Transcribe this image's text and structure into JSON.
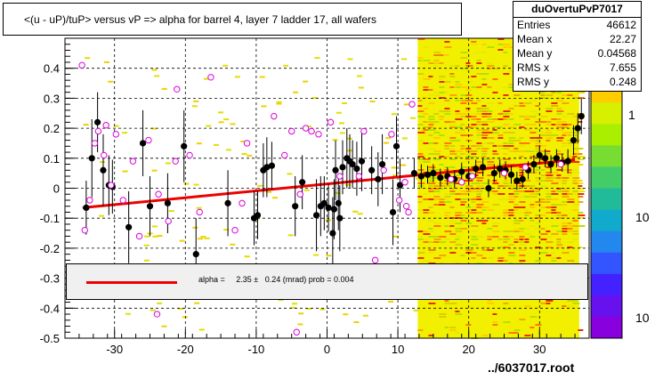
{
  "chart_data": {
    "type": "scatter",
    "title": "<(u - uP)/tuP> versus  vP => alpha for barrel 4, layer 7 ladder 17, all wafers",
    "xlabel": "",
    "ylabel": "",
    "xlim": [
      -37,
      37
    ],
    "ylim": [
      -0.5,
      0.5
    ],
    "x_ticks": [
      -30,
      -20,
      -10,
      0,
      10,
      20,
      30
    ],
    "y_ticks": [
      -0.5,
      -0.4,
      -0.3,
      -0.2,
      -0.1,
      0,
      0.1,
      0.2,
      0.3,
      0.4
    ],
    "grid": true,
    "stats_box": {
      "name": "duOvertuPvP7017",
      "rows": [
        {
          "label": "Entries",
          "value": "46612"
        },
        {
          "label": "Mean x",
          "value": "22.27"
        },
        {
          "label": "Mean y",
          "value": "0.04568"
        },
        {
          "label": "RMS x",
          "value": "7.655"
        },
        {
          "label": "RMS y",
          "value": "0.248"
        }
      ]
    },
    "fit_legend": "alpha =     2.35 ±   0.24 (mrad) prob = 0.004",
    "footer": "../6037017.root",
    "colorbar_labels": [
      "1",
      "10",
      "10"
    ],
    "fit_line": {
      "x": [
        -34.5,
        35
      ],
      "y": [
        -0.065,
        0.095
      ],
      "color": "#ee0000"
    },
    "series": [
      {
        "marker": "filled-circle",
        "color": "#000000",
        "points": [
          {
            "x": -34.0,
            "y": -0.065,
            "err": 0.09
          },
          {
            "x": -33.2,
            "y": 0.1,
            "err": 0.13
          },
          {
            "x": -32.4,
            "y": 0.22,
            "err": 0.1
          },
          {
            "x": -31.6,
            "y": 0.06,
            "err": 0.12
          },
          {
            "x": -30.8,
            "y": 0.01,
            "err": 0.1
          },
          {
            "x": -30.3,
            "y": 0.005,
            "err": 0.09
          },
          {
            "x": -28.0,
            "y": -0.13,
            "err": 0.12
          },
          {
            "x": -26.0,
            "y": 0.15,
            "err": 0.11
          },
          {
            "x": -25.0,
            "y": -0.06,
            "err": 0.1
          },
          {
            "x": -22.5,
            "y": -0.05,
            "err": 0.1
          },
          {
            "x": -20.2,
            "y": 0.14,
            "err": 0.12
          },
          {
            "x": -18.5,
            "y": -0.22,
            "err": 0.12
          },
          {
            "x": -14.0,
            "y": -0.05,
            "err": 0.11
          },
          {
            "x": -10.3,
            "y": -0.1,
            "err": 0.09
          },
          {
            "x": -9.8,
            "y": -0.09,
            "err": 0.08
          },
          {
            "x": -9.0,
            "y": 0.06,
            "err": 0.09
          },
          {
            "x": -8.5,
            "y": 0.07,
            "err": 0.1
          },
          {
            "x": -7.8,
            "y": 0.075,
            "err": 0.08
          },
          {
            "x": -4.5,
            "y": -0.06,
            "err": 0.1
          },
          {
            "x": -3.5,
            "y": 0.02,
            "err": 0.09
          },
          {
            "x": -1.5,
            "y": -0.09,
            "err": 0.12
          },
          {
            "x": -0.9,
            "y": -0.06,
            "err": 0.1
          },
          {
            "x": -0.4,
            "y": -0.05,
            "err": 0.09
          },
          {
            "x": 0.2,
            "y": -0.065,
            "err": 0.08
          },
          {
            "x": 1.0,
            "y": -0.07,
            "err": 0.1
          },
          {
            "x": 1.6,
            "y": -0.05,
            "err": 0.09
          },
          {
            "x": 0.8,
            "y": -0.15,
            "err": 0.12
          },
          {
            "x": 1.8,
            "y": -0.1,
            "err": 0.11
          },
          {
            "x": 1.2,
            "y": 0.06,
            "err": 0.1
          },
          {
            "x": 2.2,
            "y": 0.07,
            "err": 0.09
          },
          {
            "x": 2.8,
            "y": 0.1,
            "err": 0.1
          },
          {
            "x": 3.2,
            "y": 0.09,
            "err": 0.09
          },
          {
            "x": 3.6,
            "y": 0.08,
            "err": 0.08
          },
          {
            "x": 4.2,
            "y": 0.065,
            "err": 0.09
          },
          {
            "x": 4.9,
            "y": 0.09,
            "err": 0.1
          },
          {
            "x": 6.3,
            "y": 0.06,
            "err": 0.08
          },
          {
            "x": 7.2,
            "y": 0.03,
            "err": 0.09
          },
          {
            "x": 7.8,
            "y": 0.08,
            "err": 0.1
          },
          {
            "x": 9.3,
            "y": -0.08,
            "err": 0.11
          },
          {
            "x": 9.8,
            "y": 0.14,
            "err": 0.1
          },
          {
            "x": 10.3,
            "y": 0.01,
            "err": 0.09
          },
          {
            "x": 12.3,
            "y": 0.05,
            "err": 0.05
          },
          {
            "x": 13.3,
            "y": 0.04,
            "err": 0.04
          },
          {
            "x": 14.2,
            "y": 0.045,
            "err": 0.03
          },
          {
            "x": 15.0,
            "y": 0.05,
            "err": 0.03
          },
          {
            "x": 16.0,
            "y": 0.035,
            "err": 0.03
          },
          {
            "x": 17.0,
            "y": 0.04,
            "err": 0.03
          },
          {
            "x": 18.0,
            "y": 0.03,
            "err": 0.03
          },
          {
            "x": 19.0,
            "y": 0.055,
            "err": 0.03
          },
          {
            "x": 20.0,
            "y": 0.04,
            "err": 0.03
          },
          {
            "x": 21.0,
            "y": 0.065,
            "err": 0.03
          },
          {
            "x": 22.0,
            "y": 0.07,
            "err": 0.03
          },
          {
            "x": 22.8,
            "y": 0.0,
            "err": 0.03
          },
          {
            "x": 23.6,
            "y": 0.05,
            "err": 0.03
          },
          {
            "x": 24.4,
            "y": 0.065,
            "err": 0.03
          },
          {
            "x": 25.2,
            "y": 0.06,
            "err": 0.03
          },
          {
            "x": 26.0,
            "y": 0.045,
            "err": 0.03
          },
          {
            "x": 26.8,
            "y": 0.025,
            "err": 0.03
          },
          {
            "x": 27.6,
            "y": 0.03,
            "err": 0.03
          },
          {
            "x": 28.4,
            "y": 0.06,
            "err": 0.03
          },
          {
            "x": 29.2,
            "y": 0.08,
            "err": 0.03
          },
          {
            "x": 30.0,
            "y": 0.11,
            "err": 0.03
          },
          {
            "x": 30.8,
            "y": 0.1,
            "err": 0.03
          },
          {
            "x": 31.6,
            "y": 0.08,
            "err": 0.03
          },
          {
            "x": 32.4,
            "y": 0.1,
            "err": 0.03
          },
          {
            "x": 33.2,
            "y": 0.085,
            "err": 0.03
          },
          {
            "x": 34.0,
            "y": 0.09,
            "err": 0.04
          },
          {
            "x": 34.8,
            "y": 0.16,
            "err": 0.05
          },
          {
            "x": 35.4,
            "y": 0.2,
            "err": 0.05
          },
          {
            "x": 35.9,
            "y": 0.24,
            "err": 0.06
          }
        ]
      },
      {
        "marker": "open-circle",
        "color": "#dd00dd",
        "points": [
          {
            "x": -34.6,
            "y": 0.41
          },
          {
            "x": -34.2,
            "y": -0.14
          },
          {
            "x": -33.5,
            "y": -0.04
          },
          {
            "x": -32.8,
            "y": 0.15
          },
          {
            "x": -32.3,
            "y": 0.19
          },
          {
            "x": -31.5,
            "y": 0.11
          },
          {
            "x": -31.2,
            "y": 0.21
          },
          {
            "x": -30.5,
            "y": 0.01
          },
          {
            "x": -29.8,
            "y": 0.18
          },
          {
            "x": -28.8,
            "y": -0.04
          },
          {
            "x": -27.4,
            "y": 0.09
          },
          {
            "x": -26.5,
            "y": -0.16
          },
          {
            "x": -25.2,
            "y": 0.16
          },
          {
            "x": -23.8,
            "y": -0.02
          },
          {
            "x": -22.4,
            "y": -0.11
          },
          {
            "x": -21.4,
            "y": 0.09
          },
          {
            "x": -21.2,
            "y": 0.33
          },
          {
            "x": -19.4,
            "y": 0.11
          },
          {
            "x": -18.0,
            "y": -0.08
          },
          {
            "x": -16.4,
            "y": 0.37
          },
          {
            "x": -13.0,
            "y": -0.14
          },
          {
            "x": -12.0,
            "y": -0.05
          },
          {
            "x": -11.3,
            "y": 0.15
          },
          {
            "x": -7.5,
            "y": 0.24
          },
          {
            "x": -6.0,
            "y": 0.11
          },
          {
            "x": -5.0,
            "y": 0.19
          },
          {
            "x": -3.8,
            "y": -0.02
          },
          {
            "x": -3.0,
            "y": 0.2
          },
          {
            "x": -2.2,
            "y": 0.19
          },
          {
            "x": -1.2,
            "y": 0.18
          },
          {
            "x": 0.5,
            "y": 0.22
          },
          {
            "x": 1.8,
            "y": 0.04
          },
          {
            "x": 4.5,
            "y": 0.04
          },
          {
            "x": 5.2,
            "y": 0.19
          },
          {
            "x": 6.8,
            "y": -0.24
          },
          {
            "x": 8.0,
            "y": 0.06
          },
          {
            "x": 9.1,
            "y": 0.18
          },
          {
            "x": 10.2,
            "y": -0.04
          },
          {
            "x": 11.0,
            "y": 0.02
          },
          {
            "x": 11.2,
            "y": -0.06
          },
          {
            "x": 11.5,
            "y": -0.08
          },
          {
            "x": 12.0,
            "y": 0.28
          },
          {
            "x": -24.0,
            "y": -0.42
          },
          {
            "x": -4.3,
            "y": -0.48
          },
          {
            "x": 17.5,
            "y": 0.03
          },
          {
            "x": 19.0,
            "y": 0.02
          },
          {
            "x": 20.5,
            "y": 0.04
          },
          {
            "x": 25.0,
            "y": 0.05
          },
          {
            "x": 28.0,
            "y": 0.07
          },
          {
            "x": 33.0,
            "y": 0.08
          }
        ]
      }
    ]
  }
}
